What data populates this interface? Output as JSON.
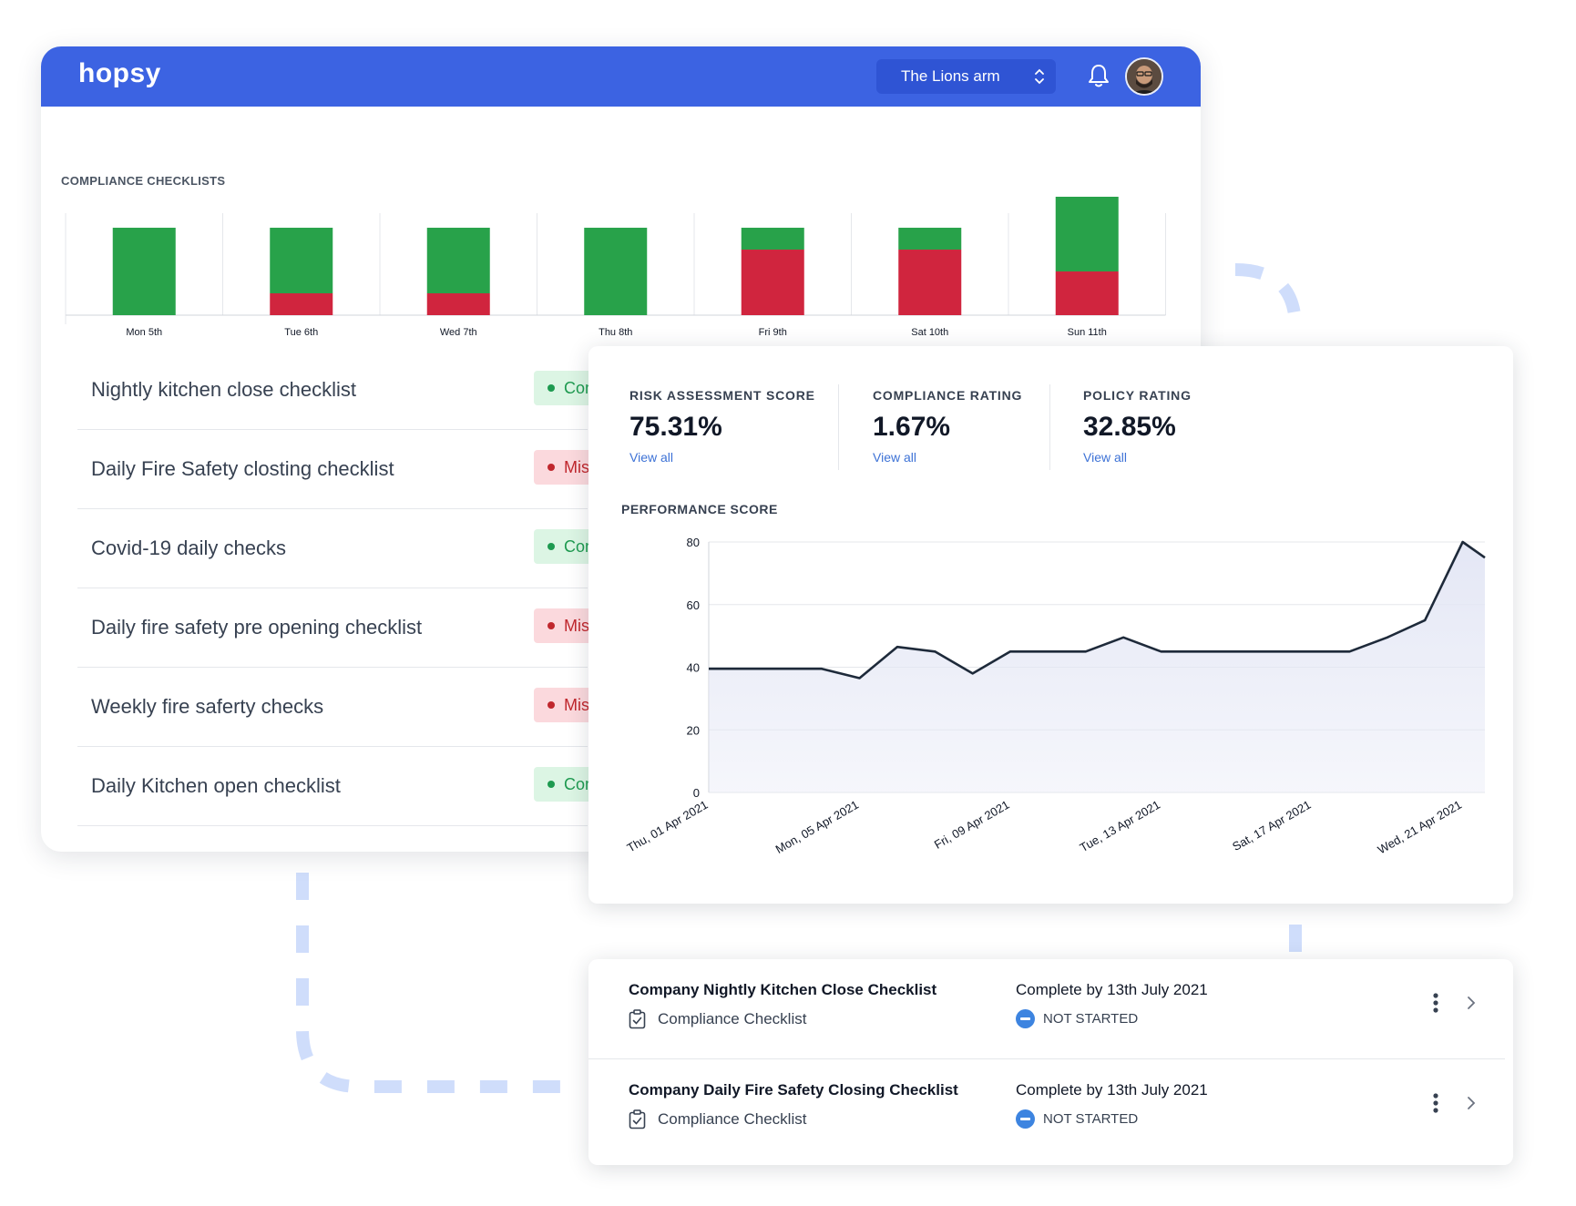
{
  "header": {
    "logo_text": "hopsy",
    "venue": "The Lions arm",
    "icons": [
      "chevron-updown-icon",
      "bell-icon",
      "avatar"
    ]
  },
  "compliance": {
    "section_title": "COMPLIANCE CHECKLISTS",
    "colors": {
      "complete": "#28a24a",
      "missed": "#d0253e"
    },
    "checklists": [
      {
        "name": "Nightly kitchen close checklist",
        "status": "Complete",
        "kind": "complete"
      },
      {
        "name": "Daily Fire Safety closting checklist",
        "status": "Missed",
        "kind": "missed"
      },
      {
        "name": "Covid-19 daily checks",
        "status": "Complete",
        "kind": "complete"
      },
      {
        "name": "Daily fire safety pre opening checklist",
        "status": "Missed",
        "kind": "missed"
      },
      {
        "name": "Weekly fire saferty checks",
        "status": "Missed",
        "kind": "missed"
      },
      {
        "name": "Daily Kitchen open checklist",
        "status": "Complete",
        "kind": "complete"
      }
    ]
  },
  "kpis": [
    {
      "label": "RISK ASSESSMENT SCORE",
      "value": "75.31%",
      "link": "View all"
    },
    {
      "label": "COMPLIANCE RATING",
      "value": "1.67%",
      "link": "View all"
    },
    {
      "label": "POLICY RATING",
      "value": "32.85%",
      "link": "View all"
    }
  ],
  "performance": {
    "title": "PERFORMANCE SCORE"
  },
  "tasks": [
    {
      "title": "Company Nightly Kitchen Close Checklist",
      "type": "Compliance Checklist",
      "due": "Complete by 13th July 2021",
      "status": "NOT STARTED"
    },
    {
      "title": "Company Daily Fire Safety Closing Checklist",
      "type": "Compliance Checklist",
      "due": "Complete by 13th July 2021",
      "status": "NOT STARTED"
    }
  ],
  "chart_data": [
    {
      "type": "bar",
      "stacked": true,
      "categories": [
        "Mon 5th",
        "Tue 6th",
        "Wed 7th",
        "Thu 8th",
        "Fri 9th",
        "Sat 10th",
        "Sun 11th"
      ],
      "series": [
        {
          "key": "missed",
          "color": "#d0253e",
          "values": [
            0,
            1,
            1,
            0,
            3,
            3,
            2
          ]
        },
        {
          "key": "complete",
          "color": "#28a24a",
          "values": [
            4,
            3,
            3,
            4,
            1,
            1,
            4
          ]
        }
      ],
      "ylim": [
        0,
        6
      ],
      "grid": "vertical"
    },
    {
      "type": "area",
      "title": "PERFORMANCE SCORE",
      "x": [
        "Thu, 01 Apr 2021",
        "Fri, 02 Apr 2021",
        "Sat, 03 Apr 2021",
        "Sun, 04 Apr 2021",
        "Mon, 05 Apr 2021",
        "Tue, 06 Apr 2021",
        "Wed, 07 Apr 2021",
        "Thu, 08 Apr 2021",
        "Fri, 09 Apr 2021",
        "Sat, 10 Apr 2021",
        "Sun, 11 Apr 2021",
        "Mon, 12 Apr 2021",
        "Tue, 13 Apr 2021",
        "Wed, 14 Apr 2021",
        "Thu, 15 Apr 2021",
        "Fri, 16 Apr 2021",
        "Sat, 17 Apr 2021",
        "Sun, 18 Apr 2021",
        "Mon, 19 Apr 2021",
        "Tue, 20 Apr 2021",
        "Wed, 21 Apr 2021",
        "Thu, 22 Apr 2021"
      ],
      "values": [
        39.5,
        39.5,
        39.5,
        39.5,
        36.5,
        46.5,
        45,
        38,
        45,
        45,
        45,
        49.5,
        45,
        45,
        45,
        45,
        45,
        45,
        49.5,
        55,
        80,
        75
      ],
      "x_tick_labels": [
        "Thu, 01 Apr 2021",
        "Mon, 05 Apr 2021",
        "Fri, 09 Apr 2021",
        "Tue, 13 Apr 2021",
        "Sat, 17 Apr 2021",
        "Wed, 21 Apr 2021"
      ],
      "y_ticks": [
        0,
        20,
        40,
        60,
        80
      ],
      "ylim": [
        0,
        80
      ],
      "line_color": "#1e2a3a",
      "fill_color": "#e4e7f5",
      "grid": "horizontal"
    }
  ]
}
